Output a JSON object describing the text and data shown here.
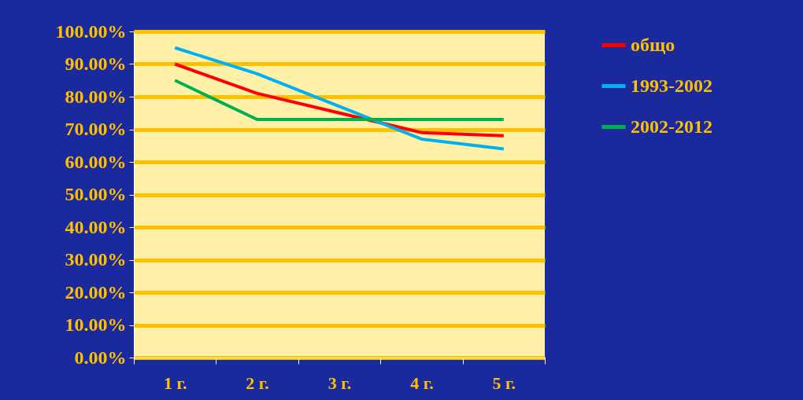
{
  "chart_data": {
    "type": "line",
    "categories": [
      "1 г.",
      "2 г.",
      "3 г.",
      "4 г.",
      "5 г."
    ],
    "series": [
      {
        "name": "общо",
        "color": "#ff0000",
        "values": [
          90,
          81,
          75,
          69,
          68
        ]
      },
      {
        "name": "1993-2002",
        "color": "#00b0f0",
        "values": [
          95,
          87,
          77,
          67,
          64
        ]
      },
      {
        "name": "2002-2012",
        "color": "#00b050",
        "values": [
          85,
          73,
          73,
          73,
          73
        ]
      }
    ],
    "ylim": [
      0,
      100
    ],
    "yticks": [
      {
        "value": 0,
        "label": "0.00%"
      },
      {
        "value": 10,
        "label": "10.00%"
      },
      {
        "value": 20,
        "label": "20.00%"
      },
      {
        "value": 30,
        "label": "30.00%"
      },
      {
        "value": 40,
        "label": "40.00%"
      },
      {
        "value": 50,
        "label": "50.00%"
      },
      {
        "value": 60,
        "label": "60.00%"
      },
      {
        "value": 70,
        "label": "70.00%"
      },
      {
        "value": 80,
        "label": "80.00%"
      },
      {
        "value": 90,
        "label": "90.00%"
      },
      {
        "value": 100,
        "label": "100.00%"
      }
    ],
    "grid": "y",
    "legend": "right",
    "marker": "none",
    "line_style": "solid"
  }
}
